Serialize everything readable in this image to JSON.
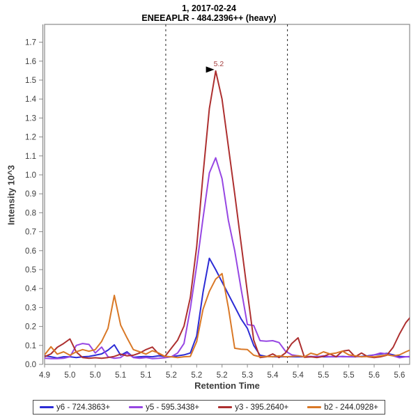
{
  "header": {
    "title_line1": "1, 2017-02-24",
    "title_line2": "ENEEAPLR - 484.2396++ (heavy)"
  },
  "colors": {
    "axis": "#8a8a8a",
    "tick_text": "#3c3c3c",
    "boundary": "#222222",
    "annotation_text": "#a33c3c",
    "annotation_arrow": "#000000"
  },
  "chart_data": {
    "type": "line",
    "title": "1, 2017-02-24 — ENEEAPLR - 484.2396++ (heavy)",
    "xlabel": "Retention Time",
    "ylabel": "Intensity 10^3",
    "xlim": [
      4.9,
      5.62
    ],
    "ylim": [
      0,
      1.794
    ],
    "grid": false,
    "legend_position": "bottom",
    "y_ticks": [
      "0.0",
      "0.1",
      "0.2",
      "0.3",
      "0.4",
      "0.5",
      "0.6",
      "0.7",
      "0.8",
      "0.9",
      "1.0",
      "1.1",
      "1.2",
      "1.3",
      "1.4",
      "1.5",
      "1.6",
      "1.7"
    ],
    "x_ticks": [
      4.9,
      4.95,
      5.0,
      5.05,
      5.1,
      5.15,
      5.2,
      5.25,
      5.3,
      5.35,
      5.4,
      5.45,
      5.5,
      5.55,
      5.6
    ],
    "x_tick_labels": [
      "4.9",
      "5.0",
      "5.0",
      "5.1",
      "5.1",
      "5.2",
      "5.2",
      "5.2",
      "5.3",
      "5.4",
      "5.4",
      "5.5",
      "5.5",
      "5.6",
      "5.6"
    ],
    "integration_boundaries": [
      5.139,
      5.379
    ],
    "peak_annotation": {
      "text": "5.2",
      "x": 5.2375,
      "y": 1.548
    },
    "x": [
      4.9,
      4.9125,
      4.925,
      4.9375,
      4.95,
      4.9625,
      4.975,
      4.9875,
      5.0,
      5.0125,
      5.025,
      5.0375,
      5.05,
      5.0625,
      5.075,
      5.0875,
      5.1,
      5.1125,
      5.125,
      5.1375,
      5.15,
      5.1625,
      5.175,
      5.1875,
      5.2,
      5.2125,
      5.225,
      5.2375,
      5.25,
      5.2625,
      5.275,
      5.2875,
      5.3,
      5.3125,
      5.325,
      5.3375,
      5.35,
      5.3625,
      5.375,
      5.3875,
      5.4,
      5.4125,
      5.425,
      5.4375,
      5.45,
      5.4625,
      5.475,
      5.4875,
      5.5,
      5.5125,
      5.525,
      5.5375,
      5.55,
      5.5625,
      5.575,
      5.5875,
      5.6,
      5.6125,
      5.625
    ],
    "series": [
      {
        "id": "y6",
        "name": "y6 - 724.3863+",
        "color": "#2b2bd5",
        "values": [
          0.045,
          0.04,
          0.034,
          0.04,
          0.04,
          0.036,
          0.04,
          0.042,
          0.048,
          0.055,
          0.075,
          0.103,
          0.048,
          0.066,
          0.037,
          0.04,
          0.042,
          0.04,
          0.045,
          0.042,
          0.04,
          0.045,
          0.05,
          0.06,
          0.15,
          0.38,
          0.56,
          0.5,
          0.435,
          0.37,
          0.305,
          0.24,
          0.19,
          0.1,
          0.048,
          0.042,
          0.04,
          0.04,
          0.04,
          0.04,
          0.04,
          0.04,
          0.04,
          0.042,
          0.04,
          0.04,
          0.04,
          0.042,
          0.04,
          0.04,
          0.042,
          0.045,
          0.05,
          0.055,
          0.058,
          0.05,
          0.042,
          0.04,
          0.04
        ]
      },
      {
        "id": "y5",
        "name": "y5 - 595.3438+",
        "color": "#9646e3",
        "values": [
          0.032,
          0.03,
          0.03,
          0.032,
          0.04,
          0.1,
          0.11,
          0.105,
          0.06,
          0.091,
          0.04,
          0.032,
          0.036,
          0.06,
          0.036,
          0.032,
          0.036,
          0.03,
          0.032,
          0.035,
          0.04,
          0.06,
          0.11,
          0.294,
          0.52,
          0.77,
          1.01,
          1.09,
          0.98,
          0.76,
          0.6,
          0.4,
          0.21,
          0.205,
          0.125,
          0.122,
          0.125,
          0.115,
          0.07,
          0.05,
          0.045,
          0.04,
          0.042,
          0.04,
          0.045,
          0.04,
          0.042,
          0.04,
          0.04,
          0.042,
          0.04,
          0.042,
          0.05,
          0.06,
          0.055,
          0.045,
          0.035,
          0.04,
          0.042
        ]
      },
      {
        "id": "y3",
        "name": "y3 - 395.2640+",
        "color": "#ad2f2f",
        "values": [
          0.04,
          0.055,
          0.09,
          0.11,
          0.134,
          0.065,
          0.036,
          0.032,
          0.035,
          0.032,
          0.036,
          0.042,
          0.054,
          0.045,
          0.048,
          0.06,
          0.078,
          0.091,
          0.055,
          0.042,
          0.085,
          0.128,
          0.202,
          0.353,
          0.62,
          1.0,
          1.35,
          1.548,
          1.4,
          1.15,
          0.9,
          0.64,
          0.38,
          0.128,
          0.036,
          0.04,
          0.055,
          0.036,
          0.06,
          0.11,
          0.14,
          0.037,
          0.04,
          0.036,
          0.042,
          0.055,
          0.04,
          0.07,
          0.075,
          0.04,
          0.06,
          0.04,
          0.036,
          0.04,
          0.048,
          0.09,
          0.16,
          0.22,
          0.26
        ]
      },
      {
        "id": "b2",
        "name": "b2 - 244.0928+",
        "color": "#d97826",
        "values": [
          0.05,
          0.093,
          0.054,
          0.066,
          0.048,
          0.066,
          0.078,
          0.069,
          0.078,
          0.121,
          0.19,
          0.364,
          0.207,
          0.14,
          0.078,
          0.066,
          0.054,
          0.072,
          0.06,
          0.042,
          0.04,
          0.036,
          0.04,
          0.042,
          0.12,
          0.29,
          0.385,
          0.45,
          0.479,
          0.3,
          0.085,
          0.08,
          0.078,
          0.048,
          0.04,
          0.042,
          0.04,
          0.045,
          0.04,
          0.042,
          0.045,
          0.04,
          0.059,
          0.05,
          0.066,
          0.055,
          0.06,
          0.07,
          0.05,
          0.045,
          0.04,
          0.042,
          0.04,
          0.045,
          0.05,
          0.045,
          0.05,
          0.066,
          0.08
        ]
      }
    ]
  }
}
